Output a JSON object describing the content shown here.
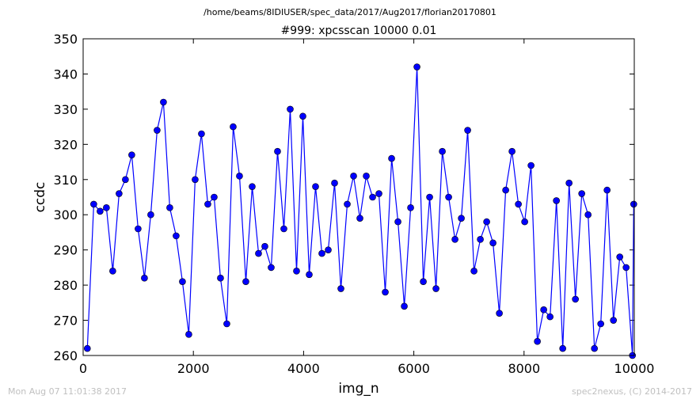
{
  "suptitle": "/home/beams/8IDIUSER/spec_data/2017/Aug2017/florian20170801",
  "footer_left": "Mon Aug 07 11:01:38 2017",
  "footer_right": "spec2nexus, (C) 2014-2017",
  "colors": {
    "series": "#0000ff",
    "footer": "#c0c0c0"
  },
  "chart_data": {
    "type": "line",
    "title": "#999: xpcsscan 10000 0.01",
    "xlabel": "img_n",
    "ylabel": "ccdc",
    "xlim": [
      0,
      10000
    ],
    "ylim": [
      260,
      350
    ],
    "xticks": [
      0,
      2000,
      4000,
      6000,
      8000,
      10000
    ],
    "yticks": [
      260,
      270,
      280,
      290,
      300,
      310,
      320,
      330,
      340,
      350
    ],
    "marker": "circle",
    "grid": false,
    "series": [
      {
        "x": [
          76,
          192,
          307,
          422,
          537,
          652,
          767,
          882,
          997,
          1112,
          1227,
          1342,
          1457,
          1572,
          1687,
          1802,
          1917,
          2032,
          2147,
          2262,
          2377,
          2492,
          2607,
          2722,
          2837,
          2952,
          3067,
          3182,
          3297,
          3412,
          3527,
          3642,
          3757,
          3872,
          3987,
          4102,
          4217,
          4332,
          4447,
          4562,
          4677,
          4792,
          4907,
          5022,
          5137,
          5252,
          5367,
          5482,
          5597,
          5712,
          5827,
          5942,
          6057,
          6172,
          6287,
          6402,
          6517,
          6632,
          6747,
          6862,
          6977,
          7092,
          7207,
          7322,
          7437,
          7552,
          7667,
          7782,
          7897,
          8012,
          8127,
          8242,
          8357,
          8472,
          8587,
          8702,
          8817,
          8932,
          9047,
          9162,
          9277,
          9392,
          9507,
          9622,
          9737,
          9852,
          9967,
          9990
        ],
        "y": [
          262,
          303,
          301,
          302,
          284,
          306,
          310,
          317,
          296,
          282,
          300,
          324,
          332,
          302,
          294,
          281,
          266,
          310,
          323,
          303,
          305,
          282,
          269,
          325,
          311,
          281,
          308,
          289,
          291,
          285,
          318,
          296,
          330,
          284,
          328,
          283,
          308,
          289,
          290,
          309,
          279,
          303,
          311,
          299,
          311,
          305,
          306,
          278,
          316,
          298,
          274,
          302,
          342,
          281,
          305,
          279,
          318,
          305,
          293,
          299,
          324,
          284,
          293,
          298,
          292,
          272,
          307,
          318,
          303,
          298,
          314,
          264,
          273,
          271,
          304,
          262,
          309,
          276,
          306,
          300,
          262,
          269,
          307,
          270,
          288,
          285,
          260,
          303
        ]
      }
    ]
  }
}
